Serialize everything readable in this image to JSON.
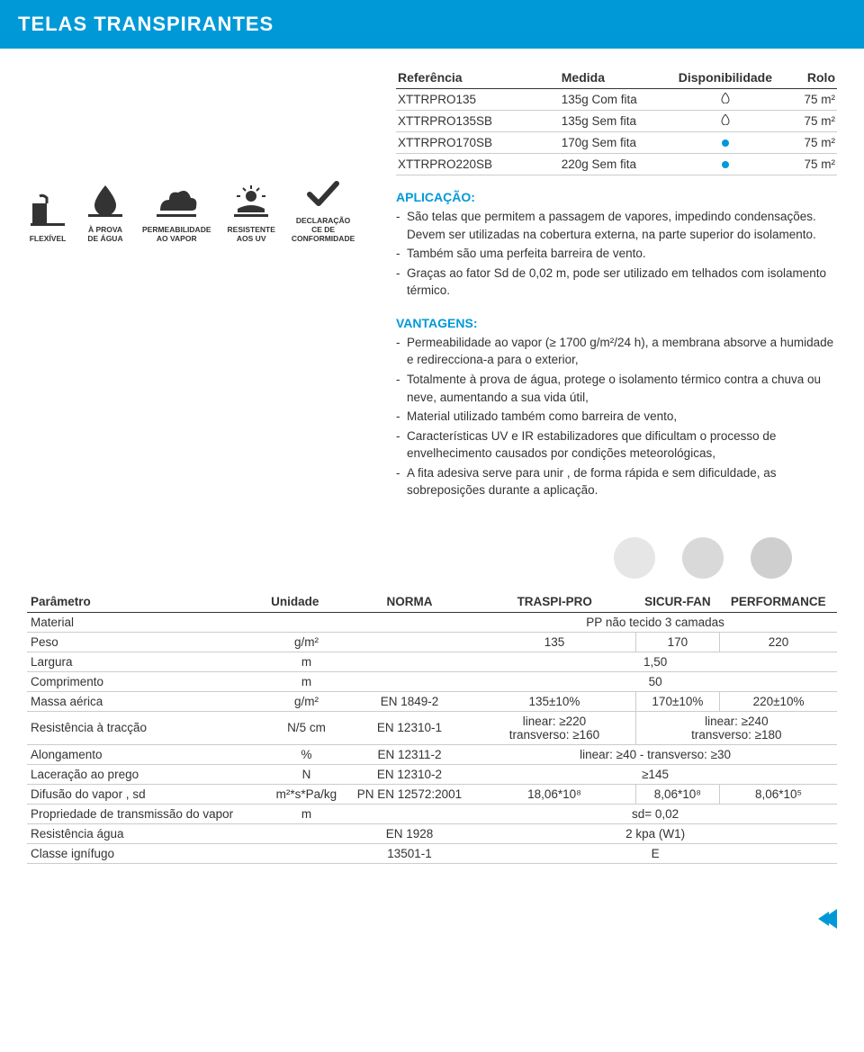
{
  "header": {
    "title": "TELAS TRANSPIRANTES"
  },
  "colors": {
    "accent": "#0099d8",
    "dropFill": "#ffffff",
    "dropStroke": "#333333",
    "dotFill": "#0099d8",
    "circle1": "#e6e6e6",
    "circle2": "#d9d9d9",
    "circle3": "#cfcfcf",
    "iconFill": "#333333"
  },
  "refTable": {
    "headers": [
      "Referência",
      "Medida",
      "Disponibilidade",
      "Rolo"
    ],
    "rows": [
      {
        "ref": "XTTRPRO135",
        "medida": "135g Com fita",
        "iconType": "drop",
        "rolo": "75 m²"
      },
      {
        "ref": "XTTRPRO135SB",
        "medida": "135g Sem fita",
        "iconType": "drop",
        "rolo": "75 m²"
      },
      {
        "ref": "XTTRPRO170SB",
        "medida": "170g Sem fita",
        "iconType": "dot",
        "rolo": "75 m²"
      },
      {
        "ref": "XTTRPRO220SB",
        "medida": "220g Sem fita",
        "iconType": "dot",
        "rolo": "75 m²"
      }
    ]
  },
  "aplicacao": {
    "title": "APLICAÇÃO:",
    "items": [
      "São telas que permitem a passagem de vapores, impedindo condensações. Devem ser utilizadas na cobertura externa, na parte superior do isolamento.",
      "Também são uma perfeita barreira de vento.",
      "Graças ao fator Sd de 0,02 m, pode ser utilizado em telhados com isolamento térmico."
    ]
  },
  "vantagens": {
    "title": "VANTAGENS:",
    "items": [
      "Permeabilidade ao vapor (≥ 1700 g/m²/24 h),  a membrana absorve a humidade e redirecciona-a para o exterior,",
      "Totalmente à prova de água, protege o isolamento térmico contra a chuva ou neve, aumentando a sua vida útil,",
      "Material utilizado também como barreira de vento,",
      "Características UV e IR estabilizadores que dificultam o processo de envelhecimento causados por condições meteorológicas,",
      "A fita adesiva serve para  unir , de forma rápida e sem dificuldade, as sobreposições durante a aplicação."
    ]
  },
  "icons": [
    {
      "label": "FLEXÍVEL",
      "name": "flex-icon"
    },
    {
      "label": "À PROVA\nDE ÁGUA",
      "name": "waterproof-icon"
    },
    {
      "label": "PERMEABILIDADE\nAO VAPOR",
      "name": "vapor-icon"
    },
    {
      "label": "RESISTENTE\nAOS UV",
      "name": "uv-icon"
    },
    {
      "label": "DECLARAÇÃO\nCE DE\nCONFORMIDADE",
      "name": "ce-icon"
    }
  ],
  "paramTable": {
    "headers": [
      "Parâmetro",
      "Unidade",
      "NORMA",
      "TRASPI-PRO",
      "SICUR-FAN",
      "PERFORMANCE"
    ],
    "rows": [
      {
        "p": "Material",
        "u": "",
        "n": "",
        "span3": "PP não tecido 3 camadas"
      },
      {
        "p": "Peso",
        "u": "g/m²",
        "n": "",
        "v1": "135",
        "v2": "170",
        "v3": "220"
      },
      {
        "p": "Largura",
        "u": "m",
        "n": "",
        "span3": "1,50"
      },
      {
        "p": "Comprimento",
        "u": "m",
        "n": "",
        "span3": "50"
      },
      {
        "p": "Massa aérica",
        "u": "g/m²",
        "n": "EN 1849-2",
        "v1": "135±10%",
        "v2": "170±10%",
        "v3": "220±10%"
      },
      {
        "p": "Resistência à tracção",
        "u": "N/5 cm",
        "n": "EN 12310-1",
        "twocol": true,
        "c1a": "linear: ≥220",
        "c1b": "transverso: ≥160",
        "c2a": "linear: ≥240",
        "c2b": "transverso: ≥180"
      },
      {
        "p": "Alongamento",
        "u": "%",
        "n": "EN 12311-2",
        "span3": "linear: ≥40 - transverso: ≥30"
      },
      {
        "p": "Laceração ao prego",
        "u": "N",
        "n": "EN 12310-2",
        "span3": "≥145"
      },
      {
        "p": "Difusão do vapor , sd",
        "u": "m²*s*Pa/kg",
        "n": "PN EN 12572:2001",
        "v1": "18,06*10⁸",
        "v2": "8,06*10⁸",
        "v3": "8,06*10⁵"
      },
      {
        "p": "Propriedade de transmissão do vapor",
        "u": "m",
        "n": "",
        "span3": "sd= 0,02"
      },
      {
        "p": "Resistência água",
        "u": "",
        "n": "EN 1928",
        "span3": "2 kpa (W1)"
      },
      {
        "p": "Classe ignífugo",
        "u": "",
        "n": "13501-1",
        "span3": "E"
      }
    ]
  }
}
